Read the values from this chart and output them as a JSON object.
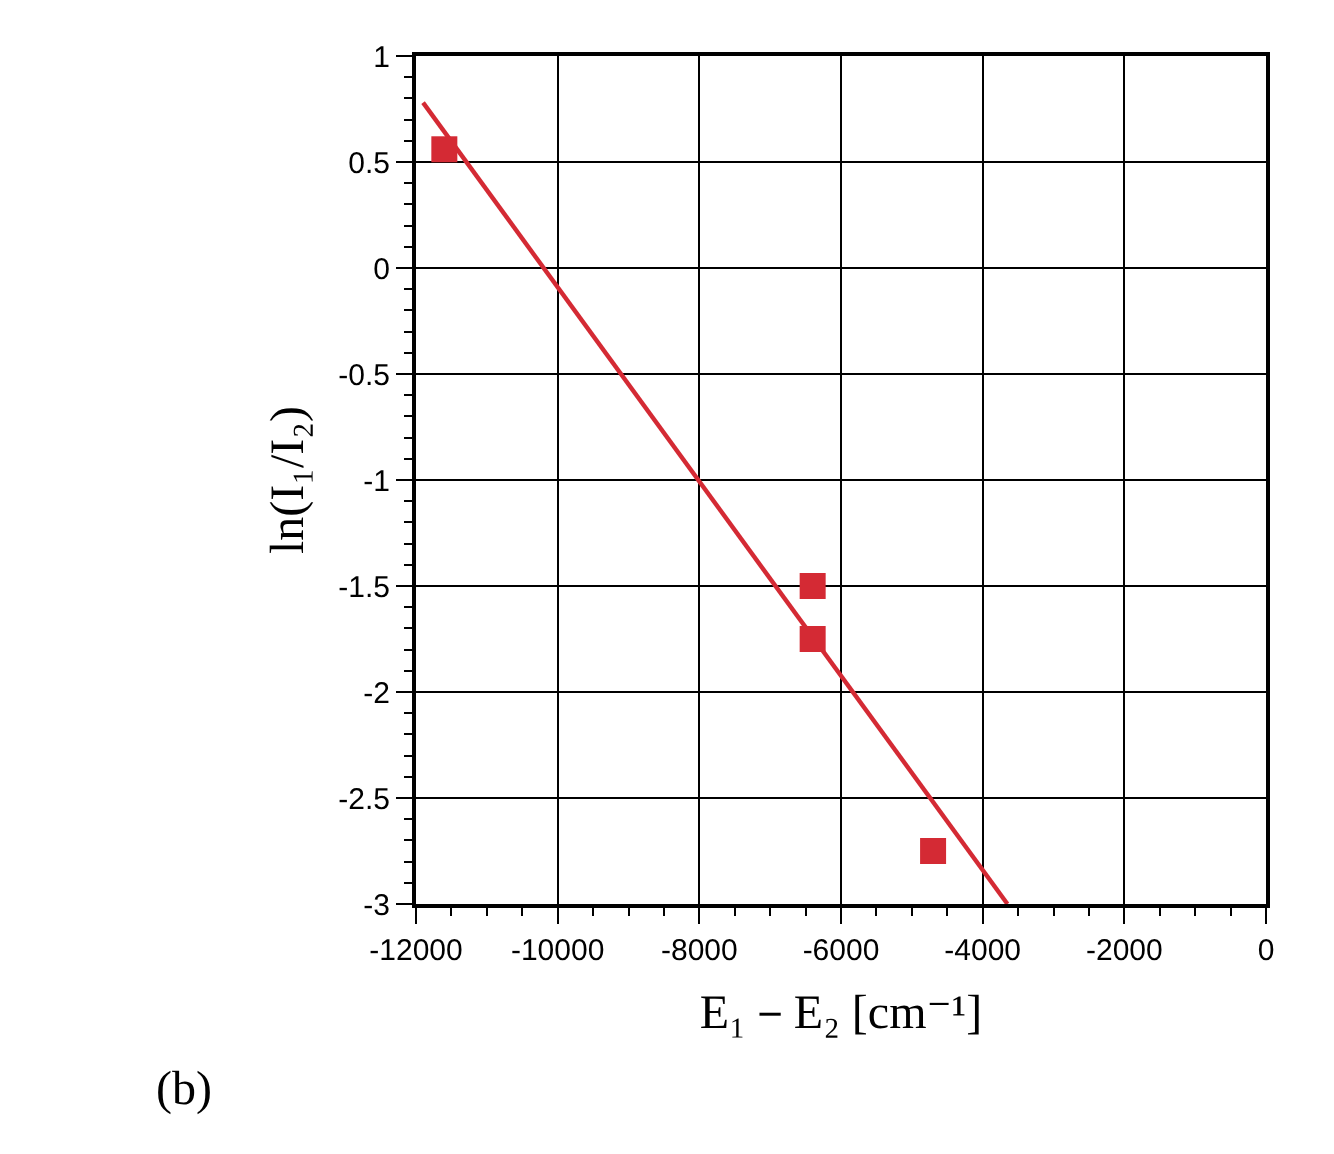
{
  "chart_data": {
    "type": "scatter",
    "xlabel": "E₁－E₂ [cm⁻¹]",
    "ylabel": "ln(I₁/I₂)",
    "annotations": [
      "(b)"
    ],
    "x": [
      -11600,
      -6400,
      -6400,
      -4700
    ],
    "series": [
      {
        "type": "scatter",
        "color": "#d42a34",
        "marker": "square",
        "values": [
          0.56,
          -1.5,
          -1.75,
          -2.75
        ]
      },
      {
        "type": "line",
        "color": "#d42a34",
        "x": [
          -11900,
          -3650
        ],
        "values": [
          0.78,
          -3.0
        ]
      }
    ],
    "xlim": [
      -12000,
      0
    ],
    "xticks": [
      -12000,
      -10000,
      -8000,
      -6000,
      -4000,
      -2000,
      0
    ],
    "ylim": [
      -3,
      1
    ],
    "yticks": [
      -3,
      -2.5,
      -2,
      -1.5,
      -1,
      -0.5,
      0,
      0.5,
      1
    ],
    "grid": true,
    "legend": false
  }
}
